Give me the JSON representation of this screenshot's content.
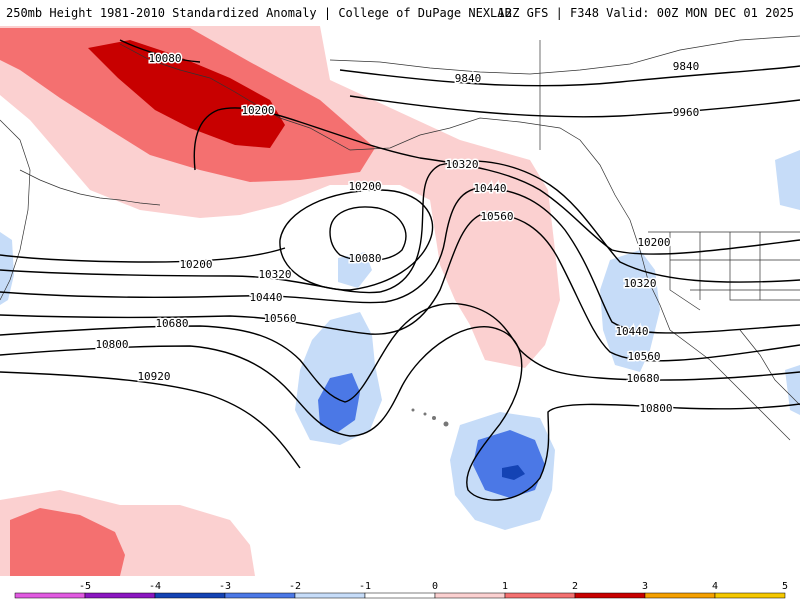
{
  "header": {
    "title_left": "250mb Height 1981-2010 Standardized Anomaly | College of DuPage NEXLAB",
    "title_right": "12Z GFS | F348 Valid: 00Z MON DEC 01 2025"
  },
  "legend": {
    "ticks": [
      "-5",
      "-4",
      "-3",
      "-2",
      "-1",
      "0",
      "1",
      "2",
      "3",
      "4",
      "5"
    ],
    "colors": [
      "#e15ae1",
      "#8a16c0",
      "#1443b4",
      "#4b78e6",
      "#c6dcf8",
      "#ffffff",
      "#fbd0d0",
      "#f47070",
      "#c80000",
      "#f5a000",
      "#f5c800"
    ]
  },
  "contours": {
    "labels": [
      "10080",
      "10200",
      "9840",
      "9840",
      "9960",
      "10320",
      "10200",
      "10440",
      "10560",
      "10080",
      "10200",
      "10200",
      "10320",
      "10320",
      "10440",
      "10440",
      "10560",
      "10560",
      "10680",
      "10680",
      "10800",
      "10800",
      "10920"
    ]
  }
}
